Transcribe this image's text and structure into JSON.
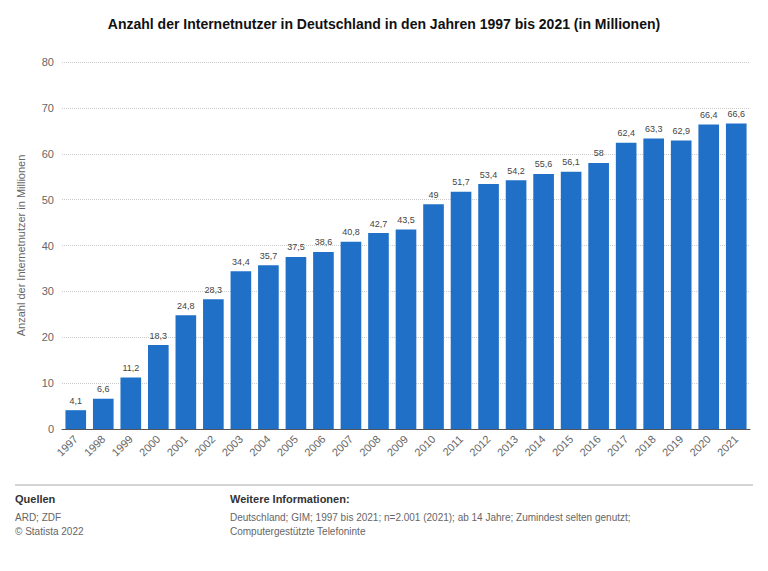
{
  "chart_data": {
    "type": "bar",
    "title": "Anzahl der Internetnutzer in Deutschland in den Jahren 1997 bis 2021 (in Millionen)",
    "ylabel": "Anzahl der Internetnutzer in Millionen",
    "categories": [
      "1997",
      "1998",
      "1999",
      "2000",
      "2001",
      "2002",
      "2003",
      "2004",
      "2005",
      "2006",
      "2007",
      "2008",
      "2009",
      "2010",
      "2011",
      "2012",
      "2013",
      "2014",
      "2015",
      "2016",
      "2017",
      "2018",
      "2019",
      "2020",
      "2021"
    ],
    "values": [
      4.1,
      6.6,
      11.2,
      18.3,
      24.8,
      28.3,
      34.4,
      35.7,
      37.5,
      38.6,
      40.8,
      42.7,
      43.5,
      49,
      51.7,
      53.4,
      54.2,
      55.6,
      56.1,
      58,
      62.4,
      63.3,
      62.9,
      66.4,
      66.6
    ],
    "value_labels": [
      "4,1",
      "6,6",
      "11,2",
      "18,3",
      "24,8",
      "28,3",
      "34,4",
      "35,7",
      "37,5",
      "38,6",
      "40,8",
      "42,7",
      "43,5",
      "49",
      "51,7",
      "53,4",
      "54,2",
      "55,6",
      "56,1",
      "58",
      "62,4",
      "63,3",
      "62,9",
      "66,4",
      "66,6"
    ],
    "data_labels": true,
    "color": "#2070c8",
    "ylim": [
      0,
      80
    ],
    "yticks": [
      0,
      10,
      20,
      30,
      40,
      50,
      60,
      70,
      80
    ],
    "grid": true,
    "annotations": [
      "Quellen",
      "ARD; ZDF\n© Statista 2022",
      "Weitere Informationen:",
      "Deutschland; GIM; 1997 bis 2021; n=2.001 (2021); ab 14 Jahre; Zumindest selten genutzt; Computergestützte Telefoninte"
    ]
  }
}
